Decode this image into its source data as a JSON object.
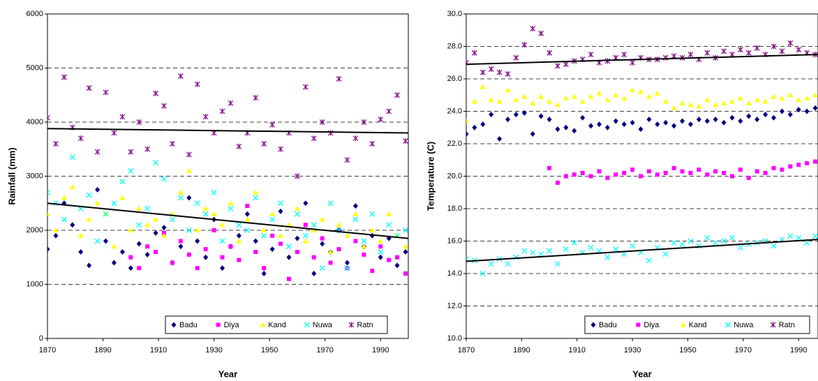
{
  "chart_data": [
    {
      "type": "scatter",
      "x_label": "Year",
      "y_label": "Rainfall (mm)",
      "x": [
        1870,
        1873,
        1876,
        1879,
        1882,
        1885,
        1888,
        1891,
        1894,
        1897,
        1900,
        1903,
        1906,
        1909,
        1912,
        1915,
        1918,
        1921,
        1924,
        1927,
        1930,
        1933,
        1936,
        1939,
        1942,
        1945,
        1948,
        1951,
        1954,
        1957,
        1960,
        1963,
        1966,
        1969,
        1972,
        1975,
        1978,
        1981,
        1984,
        1987,
        1990,
        1993,
        1996,
        1999
      ],
      "xlim": [
        1870,
        2000
      ],
      "xticks": [
        1870,
        1890,
        1910,
        1930,
        1950,
        1970,
        1990
      ],
      "ylim": [
        0,
        6000
      ],
      "yticks": [
        0,
        1000,
        2000,
        3000,
        4000,
        5000,
        6000
      ],
      "grid": true,
      "legend": "lower right",
      "series": [
        {
          "name": "Badu",
          "color": "#000080",
          "marker": "diamond",
          "values": [
            1650,
            1900,
            2500,
            2100,
            1600,
            1350,
            2750,
            1800,
            1400,
            1600,
            1300,
            1750,
            1550,
            1950,
            2050,
            1400,
            1700,
            2600,
            1800,
            1500,
            2200,
            1300,
            1700,
            1900,
            2300,
            1800,
            1200,
            1650,
            2350,
            1500,
            1850,
            2500,
            1200,
            1750,
            1600,
            2000,
            1400,
            2450,
            1700,
            1900,
            1500,
            1850,
            1350,
            1600
          ]
        },
        {
          "name": "Diya",
          "color": "#ff00ff",
          "marker": "square",
          "values": [
            null,
            null,
            null,
            null,
            null,
            null,
            null,
            null,
            null,
            null,
            1500,
            1300,
            1700,
            1600,
            1950,
            1400,
            1800,
            1550,
            1300,
            1650,
            2000,
            1500,
            1700,
            1450,
            2450,
            1600,
            1300,
            1900,
            1750,
            1100,
            1600,
            2100,
            1500,
            1850,
            1400,
            1650,
            1300,
            1800,
            1550,
            1250,
            1700,
            1450,
            1500,
            1200
          ]
        },
        {
          "name": "Kand",
          "color": "#ffff00",
          "marker": "triangle",
          "values": [
            2300,
            2000,
            2600,
            2800,
            1900,
            2200,
            2500,
            2300,
            1700,
            2600,
            2000,
            2400,
            2100,
            2200,
            1900,
            2300,
            2700,
            3100,
            2000,
            2400,
            2300,
            2100,
            2500,
            1800,
            2200,
            2700,
            2000,
            2300,
            1900,
            2100,
            2400,
            1800,
            2000,
            2200,
            1600,
            2100,
            1900,
            2300,
            1700,
            2000,
            1800,
            2300,
            1900,
            1700
          ]
        },
        {
          "name": "Nuwa",
          "color": "#00ffff",
          "marker": "x",
          "values": [
            2700,
            2500,
            2200,
            3350,
            2400,
            2650,
            1800,
            2300,
            2500,
            2900,
            3100,
            2100,
            2400,
            3250,
            2950,
            2200,
            2600,
            2000,
            2500,
            2300,
            2700,
            1800,
            2400,
            2100,
            2000,
            2600,
            1900,
            2200,
            2500,
            1700,
            2300,
            1900,
            2100,
            1300,
            2500,
            2000,
            1300,
            2200,
            1800,
            2300,
            1600,
            2100,
            1900,
            2000
          ]
        },
        {
          "name": "Ratn",
          "color": "#800080",
          "marker": "star",
          "values": [
            4080,
            3600,
            4830,
            3900,
            3700,
            4630,
            3450,
            4550,
            3800,
            4100,
            3450,
            4000,
            3500,
            4530,
            4300,
            3600,
            4850,
            3400,
            4700,
            4100,
            3800,
            4200,
            4350,
            3550,
            3800,
            4450,
            3600,
            3950,
            3500,
            3800,
            3000,
            4650,
            3700,
            4000,
            3800,
            4800,
            3300,
            3700,
            4000,
            3600,
            4050,
            4200,
            4500,
            3650
          ]
        }
      ],
      "trendlines": [
        {
          "x": [
            1870,
            2000
          ],
          "values": [
            3880,
            3800
          ]
        },
        {
          "x": [
            1870,
            2000
          ],
          "values": [
            2500,
            1850
          ]
        }
      ]
    },
    {
      "type": "scatter",
      "x_label": "Year",
      "y_label": "Temperature (C)",
      "x": [
        1870,
        1873,
        1876,
        1879,
        1882,
        1885,
        1888,
        1891,
        1894,
        1897,
        1900,
        1903,
        1906,
        1909,
        1912,
        1915,
        1918,
        1921,
        1924,
        1927,
        1930,
        1933,
        1936,
        1939,
        1942,
        1945,
        1948,
        1951,
        1954,
        1957,
        1960,
        1963,
        1966,
        1969,
        1972,
        1975,
        1978,
        1981,
        1984,
        1987,
        1990,
        1993,
        1996,
        1999
      ],
      "xlim": [
        1870,
        1997
      ],
      "xticks": [
        1870,
        1890,
        1910,
        1930,
        1950,
        1970,
        1990
      ],
      "ylim": [
        10,
        30
      ],
      "yticks": [
        {
          "value": 10,
          "label": "10.0"
        },
        {
          "value": 12,
          "label": "12.0"
        },
        {
          "value": 14,
          "label": "14.0"
        },
        {
          "value": 16,
          "label": "16.0"
        },
        {
          "value": 18,
          "label": "18.0"
        },
        {
          "value": 20,
          "label": "20.0"
        },
        {
          "value": 22,
          "label": "22.0"
        },
        {
          "value": 24,
          "label": "24.0"
        },
        {
          "value": 26,
          "label": "26.0"
        },
        {
          "value": 28,
          "label": "28.0"
        },
        {
          "value": 30,
          "label": "30.0"
        }
      ],
      "grid": true,
      "legend": "lower right",
      "series": [
        {
          "name": "Badu",
          "color": "#000080",
          "marker": "diamond",
          "values": [
            22.6,
            23.0,
            23.2,
            23.8,
            22.3,
            23.5,
            23.8,
            23.9,
            22.6,
            23.7,
            23.5,
            22.9,
            23.0,
            22.8,
            23.6,
            23.1,
            23.2,
            23.0,
            23.4,
            23.2,
            23.3,
            22.9,
            23.5,
            23.2,
            23.3,
            23.1,
            23.4,
            23.2,
            23.5,
            23.4,
            23.5,
            23.3,
            23.6,
            23.4,
            23.7,
            23.5,
            23.8,
            23.6,
            24.0,
            23.8,
            24.1,
            24.0,
            24.2,
            24.4
          ]
        },
        {
          "name": "Diya",
          "color": "#ff00ff",
          "marker": "square",
          "values": [
            null,
            null,
            null,
            null,
            null,
            null,
            null,
            null,
            null,
            null,
            20.5,
            19.6,
            20.0,
            20.1,
            20.2,
            20.0,
            20.3,
            19.9,
            20.1,
            20.2,
            20.4,
            20.0,
            20.3,
            20.1,
            20.2,
            20.5,
            20.3,
            20.2,
            20.4,
            20.1,
            20.3,
            20.2,
            20.0,
            20.4,
            19.9,
            20.3,
            20.2,
            20.5,
            20.4,
            20.6,
            20.7,
            20.8,
            20.9,
            21.6
          ]
        },
        {
          "name": "Kand",
          "color": "#ffff00",
          "marker": "triangle",
          "values": [
            23.4,
            24.6,
            25.5,
            24.7,
            24.6,
            25.3,
            24.7,
            24.9,
            24.5,
            24.9,
            24.6,
            24.4,
            24.8,
            24.9,
            24.6,
            24.9,
            25.1,
            24.7,
            25.0,
            24.8,
            25.3,
            25.2,
            24.9,
            25.1,
            24.6,
            24.2,
            24.5,
            24.4,
            24.3,
            24.7,
            24.4,
            24.5,
            24.6,
            24.8,
            24.5,
            24.7,
            24.6,
            24.9,
            24.8,
            25.0,
            24.7,
            24.8,
            25.0,
            24.9
          ]
        },
        {
          "name": "Nuwa",
          "color": "#00ffff",
          "marker": "x",
          "values": [
            14.9,
            14.8,
            14.0,
            14.6,
            14.9,
            14.6,
            15.0,
            15.4,
            15.3,
            15.2,
            15.4,
            14.6,
            15.5,
            15.9,
            15.3,
            15.6,
            15.4,
            15.0,
            15.5,
            15.2,
            15.7,
            15.3,
            14.8,
            15.6,
            15.2,
            15.9,
            15.8,
            16.0,
            15.7,
            16.2,
            15.9,
            16.0,
            16.2,
            15.6,
            15.8,
            15.9,
            16.0,
            15.7,
            16.1,
            16.3,
            16.2,
            15.9,
            16.3,
            16.6
          ]
        },
        {
          "name": "Ratn",
          "color": "#800080",
          "marker": "star",
          "values": [
            27.0,
            27.6,
            26.4,
            26.6,
            26.4,
            26.3,
            27.3,
            28.1,
            29.1,
            28.8,
            27.6,
            26.8,
            26.9,
            27.1,
            27.2,
            27.5,
            27.0,
            27.1,
            27.3,
            27.5,
            27.0,
            27.3,
            27.2,
            27.2,
            27.3,
            27.4,
            27.3,
            27.5,
            27.2,
            27.6,
            27.3,
            27.7,
            27.5,
            27.8,
            27.6,
            27.9,
            27.5,
            28.0,
            27.7,
            28.2,
            27.8,
            27.6,
            27.5,
            27.7
          ]
        }
      ],
      "trendlines": [
        {
          "x": [
            1870,
            1997
          ],
          "values": [
            26.9,
            27.5
          ]
        },
        {
          "x": [
            1870,
            1997
          ],
          "values": [
            14.75,
            16.1
          ]
        }
      ]
    }
  ]
}
